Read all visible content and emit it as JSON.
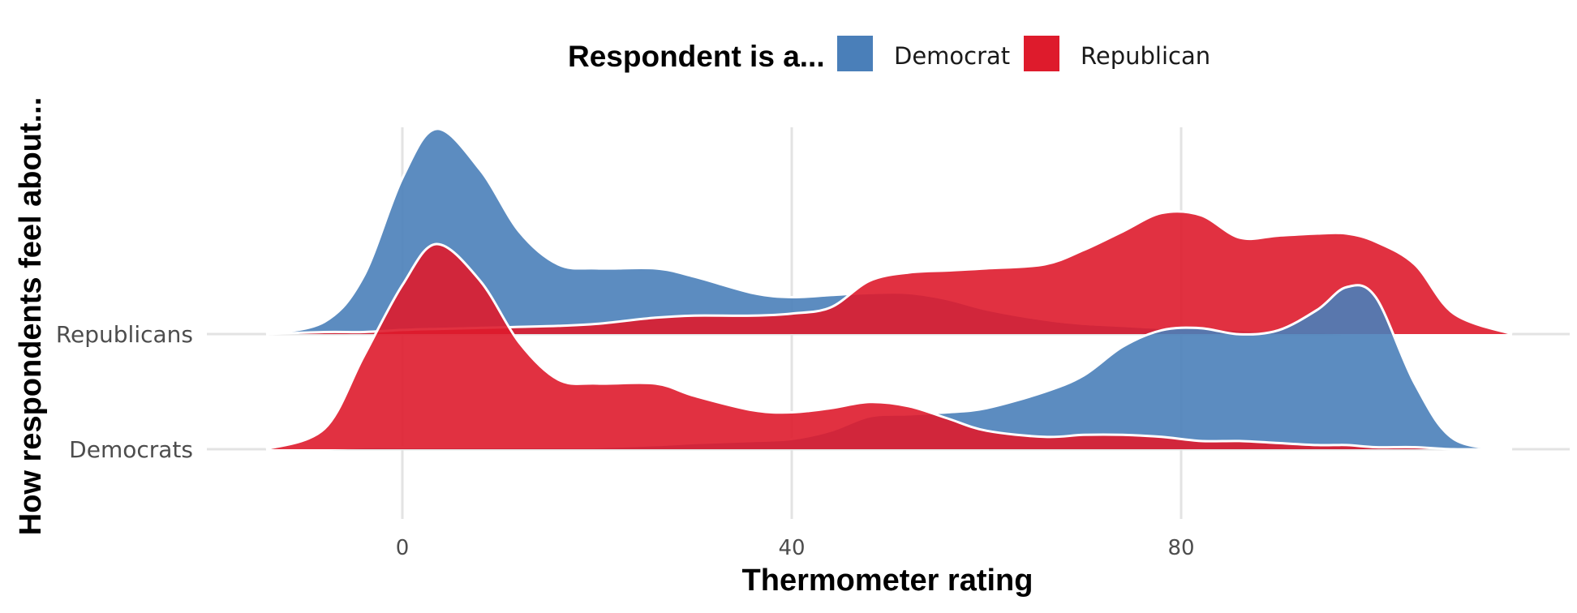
{
  "chart_data": {
    "type": "area",
    "subtype": "ridgeline-density",
    "xlabel": "Thermometer rating",
    "ylabel": "How respondents feel about...",
    "x_ticks": [
      0,
      40,
      80
    ],
    "xlim": [
      -14,
      114
    ],
    "grid": true,
    "legend": {
      "title": "Respondent is a...",
      "position": "top",
      "entries": [
        {
          "name": "Democrat",
          "color": "#4a7fb9"
        },
        {
          "name": "Republican",
          "color": "#de1b2c"
        }
      ]
    },
    "categories": [
      "Democrats",
      "Republicans"
    ],
    "x": [
      -14,
      -8,
      -4,
      0,
      3.5,
      8,
      12,
      16,
      20,
      26,
      30,
      36,
      40,
      44,
      48,
      52,
      56,
      60,
      66,
      70,
      74,
      78,
      82,
      86,
      90,
      94,
      97,
      100,
      104,
      108,
      114
    ],
    "ridges": [
      {
        "category": "Republicans",
        "series": [
          {
            "name": "Democrat",
            "values": [
              0.0,
              0.06,
              0.28,
              0.76,
              1.0,
              0.8,
              0.5,
              0.34,
              0.32,
              0.32,
              0.28,
              0.2,
              0.18,
              0.19,
              0.2,
              0.2,
              0.17,
              0.12,
              0.07,
              0.05,
              0.04,
              0.03,
              0.03,
              0.02,
              0.01,
              0.01,
              0.0,
              0.0,
              0.0,
              0.0,
              0.0
            ]
          },
          {
            "name": "Republican",
            "values": [
              0.0,
              0.01,
              0.01,
              0.02,
              0.025,
              0.03,
              0.035,
              0.04,
              0.05,
              0.08,
              0.09,
              0.09,
              0.1,
              0.13,
              0.26,
              0.3,
              0.31,
              0.32,
              0.34,
              0.41,
              0.5,
              0.59,
              0.58,
              0.47,
              0.48,
              0.49,
              0.49,
              0.45,
              0.34,
              0.1,
              0.0
            ]
          }
        ]
      },
      {
        "category": "Democrats",
        "series": [
          {
            "name": "Democrat",
            "values": [
              0.0,
              0.0,
              0.01,
              0.01,
              0.01,
              0.01,
              0.01,
              0.01,
              0.01,
              0.02,
              0.03,
              0.04,
              0.05,
              0.09,
              0.16,
              0.17,
              0.18,
              0.2,
              0.28,
              0.36,
              0.5,
              0.58,
              0.59,
              0.56,
              0.58,
              0.68,
              0.79,
              0.74,
              0.32,
              0.05,
              0.0
            ]
          },
          {
            "name": "Republican",
            "values": [
              0.0,
              0.1,
              0.45,
              0.8,
              1.0,
              0.82,
              0.52,
              0.34,
              0.32,
              0.32,
              0.26,
              0.19,
              0.18,
              0.2,
              0.23,
              0.21,
              0.15,
              0.09,
              0.06,
              0.07,
              0.07,
              0.06,
              0.04,
              0.04,
              0.03,
              0.02,
              0.02,
              0.01,
              0.01,
              0.0,
              0.0
            ]
          }
        ]
      }
    ]
  }
}
